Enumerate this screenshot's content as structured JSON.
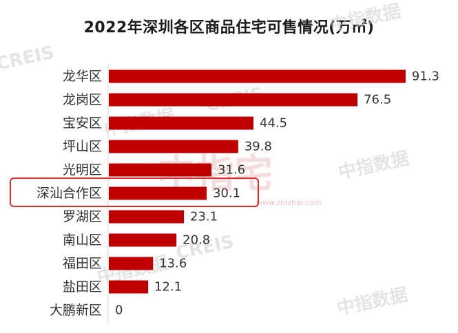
{
  "title": "2022年深圳各区商品住宅可售情况(万㎡)",
  "watermarks": {
    "creis": "CREIS",
    "zhongzhi": "中指数据",
    "logo": "中指宅",
    "url": "www.zhizhai.com"
  },
  "colors": {
    "bar": "#c00000",
    "highlight": "#e02b2b",
    "axis": "#d9d9d9"
  },
  "highlight_category": "深汕合作区",
  "chart_data": {
    "type": "bar",
    "orientation": "horizontal",
    "title": "2022年深圳各区商品住宅可售情况(万㎡)",
    "categories": [
      "龙华区",
      "龙岗区",
      "宝安区",
      "坪山区",
      "光明区",
      "深汕合作区",
      "罗湖区",
      "南山区",
      "福田区",
      "盐田区",
      "大鹏新区"
    ],
    "values": [
      91.3,
      76.5,
      44.5,
      39.8,
      31.6,
      30.1,
      23.1,
      20.8,
      13.6,
      12.1,
      0
    ],
    "value_labels": [
      "91.3",
      "76.5",
      "44.5",
      "39.8",
      "31.6",
      "30.1",
      "23.1",
      "20.8",
      "13.6",
      "12.1",
      "0"
    ],
    "xlim": [
      0,
      100
    ],
    "grid": false,
    "legend": "none"
  }
}
